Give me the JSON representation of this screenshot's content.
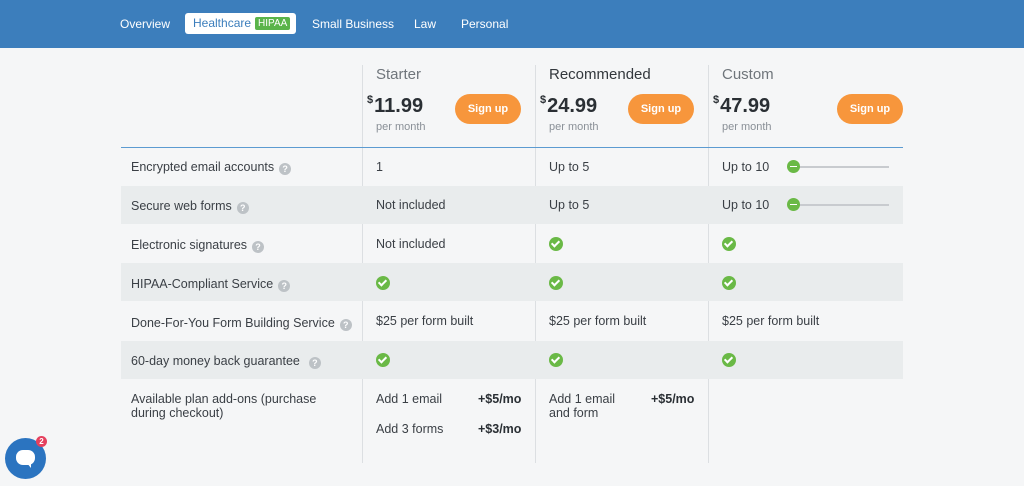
{
  "nav": {
    "tabs": [
      {
        "label": "Overview"
      },
      {
        "label": "Healthcare",
        "badge": "HIPAA"
      },
      {
        "label": "Small Business"
      },
      {
        "label": "Law"
      },
      {
        "label": "Personal"
      }
    ],
    "active_tab": "Healthcare"
  },
  "plans": [
    {
      "name": "Starter",
      "currency": "$",
      "price": "11.99",
      "period": "per month",
      "signup_label": "Sign up"
    },
    {
      "name": "Recommended",
      "currency": "$",
      "price": "24.99",
      "period": "per month",
      "signup_label": "Sign up"
    },
    {
      "name": "Custom",
      "currency": "$",
      "price": "47.99",
      "period": "per month",
      "signup_label": "Sign up"
    }
  ],
  "features": [
    {
      "label": "Encrypted email accounts",
      "values": [
        "1",
        "Up to 5",
        "Up to 10"
      ]
    },
    {
      "label": "Secure web forms",
      "values": [
        "Not included",
        "Up to 5",
        "Up to 10"
      ]
    },
    {
      "label": "Electronic signatures",
      "values": [
        "Not included",
        "check",
        "check"
      ]
    },
    {
      "label": "HIPAA-Compliant Service",
      "values": [
        "check",
        "check",
        "check"
      ]
    },
    {
      "label": "Done-For-You Form Building Service",
      "values": [
        "$25 per form built",
        "$25 per form built",
        "$25 per form built"
      ]
    },
    {
      "label": "60-day money back guarantee",
      "values": [
        "check",
        "check",
        "check"
      ]
    }
  ],
  "addons": {
    "label_line1": "Available plan add-ons (purchase",
    "label_line2": "during checkout)",
    "starter": [
      {
        "name": "Add 1 email",
        "price": "+$5/mo"
      },
      {
        "name": "Add 3 forms",
        "price": "+$3/mo"
      }
    ],
    "recommended": {
      "name_line1": "Add 1 email",
      "name_line2": "and form",
      "price": "+$5/mo"
    }
  },
  "help_icon_glyph": "?",
  "chat": {
    "badge_count": "2"
  },
  "colors": {
    "nav_bg": "#3c7ebc",
    "accent_orange": "#f7963c",
    "check_green": "#6ab946",
    "badge_green": "#5ab44a"
  }
}
